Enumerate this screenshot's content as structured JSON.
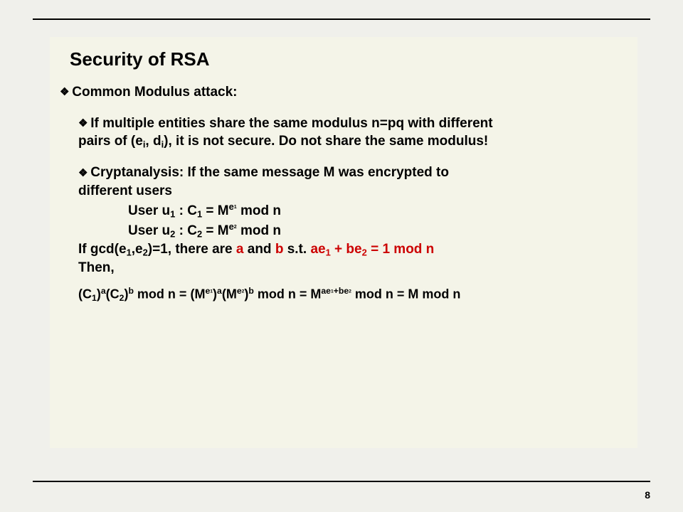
{
  "page": {
    "number": "8",
    "title": "Security of RSA",
    "background_color": "#f0f0eb",
    "content_bg": "#f4f4e8",
    "rule_color": "#000000",
    "accent_color": "#cc0000",
    "title_fontsize": 26,
    "body_fontsize": 19
  },
  "txt": {
    "heading1": "Common Modulus attack:",
    "p1a": "If multiple entities share the same modulus n=pq with different",
    "p1b_pre": "pairs of (e",
    "p1b_mid": ", d",
    "p1b_post": "), it is not secure. Do not share the same modulus!",
    "i_sub": "i",
    "p2a": "Cryptanalysis: If the same message M was encrypted to",
    "p2b": "different users",
    "u1_pre": "User u",
    "one": "1",
    "c1_pre": " : C",
    "eq_M": " = M",
    "e_lbl": "e",
    "modn": " mod n",
    "u2_pre": "User u",
    "two": "2",
    "c2_pre": " : C",
    "gcd_pre": "If gcd(e",
    "gcd_mid": ",e",
    "gcd_post": ")=1, there are ",
    "a": "a",
    "and": " and ",
    "b": "b",
    "st": " s.t. ",
    "ae": "ae",
    "plus": " + ",
    "be": "be",
    "eq1modn": " = 1 mod n",
    "then": "Then,",
    "C": "C",
    "op": "(",
    "cp": ")",
    "M": "M",
    "ae_exp": "ae",
    "be_exp": "+be",
    "eq_sign": " = ",
    "modn2": " mod n",
    "M_modn": " = M mod n"
  }
}
